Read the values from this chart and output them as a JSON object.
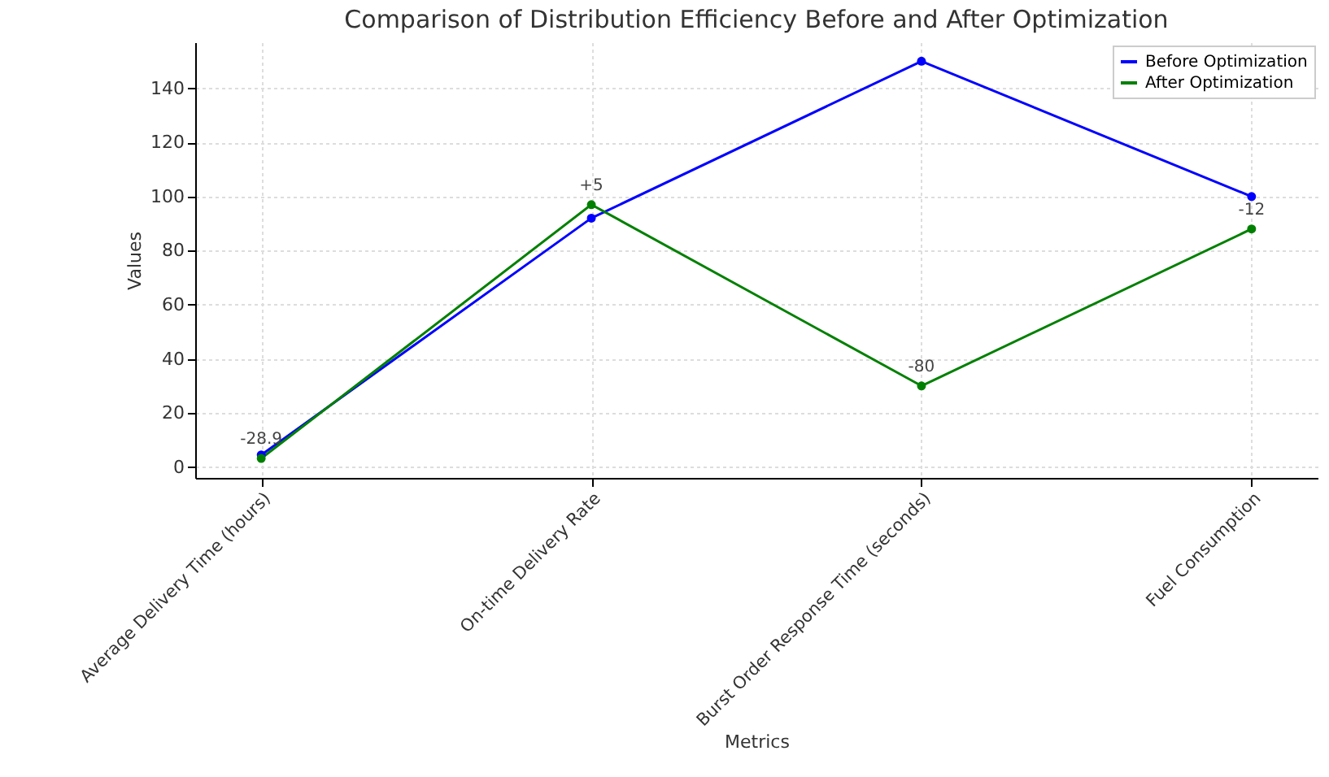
{
  "chart_data": {
    "type": "line",
    "title": "Comparison of Distribution Efficiency Before and After Optimization",
    "xlabel": "Metrics",
    "ylabel": "Values",
    "categories": [
      "Average Delivery Time (hours)",
      "On-time Delivery Rate",
      "Burst Order Response Time (seconds)",
      "Fuel Consumption"
    ],
    "series": [
      {
        "name": "Before Optimization",
        "color": "#0000ff",
        "values": [
          4.5,
          92,
          150,
          100
        ]
      },
      {
        "name": "After Optimization",
        "color": "#008000",
        "values": [
          3.2,
          97,
          30,
          88
        ]
      }
    ],
    "annotations": [
      {
        "text": "-28.9",
        "x": "Average Delivery Time (hours)",
        "y": 3.2
      },
      {
        "text": "+5",
        "x": "On-time Delivery Rate",
        "y": 97
      },
      {
        "text": "-80",
        "x": "Burst Order Response Time (seconds)",
        "y": 30
      },
      {
        "text": "-12",
        "x": "Fuel Consumption",
        "y": 88
      }
    ],
    "ylim": [
      -4,
      157
    ],
    "yticks": [
      0,
      20,
      40,
      60,
      80,
      100,
      120,
      140
    ],
    "grid": true,
    "legend": "top right",
    "marker": "circle",
    "line_style": "solid"
  }
}
